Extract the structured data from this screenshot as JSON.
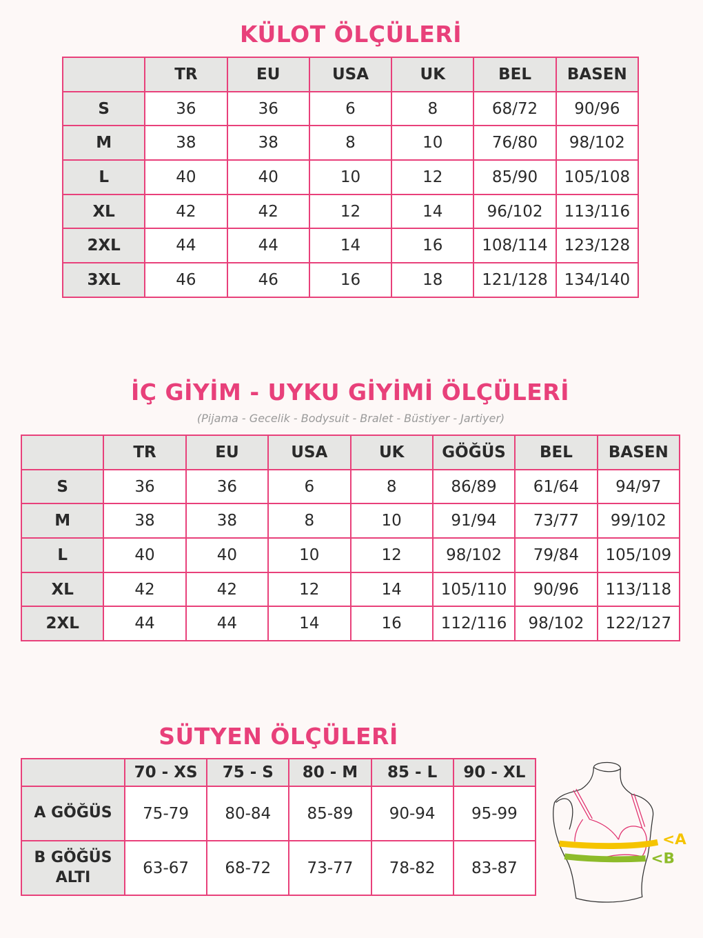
{
  "colors": {
    "accent": "#e8407a",
    "header_bg": "#e6e6e4",
    "band_a": "#f5c400",
    "band_b": "#8dbb2a"
  },
  "kulot": {
    "title": "KÜLOT ÖLÇÜLERİ",
    "columns": [
      "",
      "TR",
      "EU",
      "USA",
      "UK",
      "BEL",
      "BASEN"
    ],
    "rows": [
      [
        "S",
        "36",
        "36",
        "6",
        "8",
        "68/72",
        "90/96"
      ],
      [
        "M",
        "38",
        "38",
        "8",
        "10",
        "76/80",
        "98/102"
      ],
      [
        "L",
        "40",
        "40",
        "10",
        "12",
        "85/90",
        "105/108"
      ],
      [
        "XL",
        "42",
        "42",
        "12",
        "14",
        "96/102",
        "113/116"
      ],
      [
        "2XL",
        "44",
        "44",
        "14",
        "16",
        "108/114",
        "123/128"
      ],
      [
        "3XL",
        "46",
        "46",
        "16",
        "18",
        "121/128",
        "134/140"
      ]
    ]
  },
  "ic_giyim": {
    "title": "İÇ GİYİM - UYKU GİYİMİ ÖLÇÜLERİ",
    "subtitle": "(Pijama - Gecelik - Bodysuit - Bralet - Büstiyer - Jartiyer)",
    "columns": [
      "",
      "TR",
      "EU",
      "USA",
      "UK",
      "GÖĞÜS",
      "BEL",
      "BASEN"
    ],
    "rows": [
      [
        "S",
        "36",
        "36",
        "6",
        "8",
        "86/89",
        "61/64",
        "94/97"
      ],
      [
        "M",
        "38",
        "38",
        "8",
        "10",
        "91/94",
        "73/77",
        "99/102"
      ],
      [
        "L",
        "40",
        "40",
        "10",
        "12",
        "98/102",
        "79/84",
        "105/109"
      ],
      [
        "XL",
        "42",
        "42",
        "12",
        "14",
        "105/110",
        "90/96",
        "113/118"
      ],
      [
        "2XL",
        "44",
        "44",
        "14",
        "16",
        "112/116",
        "98/102",
        "122/127"
      ]
    ]
  },
  "sutyen": {
    "title": "SÜTYEN ÖLÇÜLERİ",
    "columns": [
      "",
      "70 - XS",
      "75 - S",
      "80 - M",
      "85 - L",
      "90 - XL"
    ],
    "rows": [
      [
        "A GÖĞÜS",
        "75-79",
        "80-84",
        "85-89",
        "90-94",
        "95-99"
      ],
      [
        "B GÖĞÜS ALTI",
        "63-67",
        "68-72",
        "73-77",
        "78-82",
        "83-87"
      ]
    ],
    "figure_labels": {
      "a": "<A",
      "b": "<B"
    }
  }
}
